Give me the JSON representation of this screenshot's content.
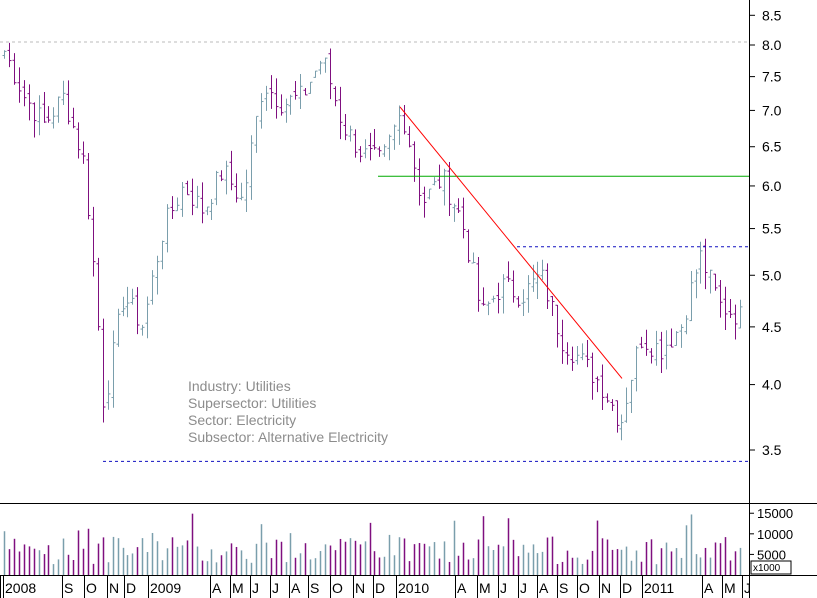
{
  "chart_data": {
    "type": "ohlc",
    "y_scale": "log",
    "ylim": [
      3.2,
      8.6
    ],
    "y_ticks": [
      3.5,
      4.0,
      4.5,
      5.0,
      5.5,
      6.0,
      6.5,
      7.0,
      7.5,
      8.0,
      8.5
    ],
    "y_tick_labels": [
      "3.5",
      "4.0",
      "4.5",
      "5.0",
      "5.5",
      "6.0",
      "6.5",
      "7.0",
      "7.5",
      "8.0",
      "8.5"
    ],
    "x_labels": [
      "2008",
      "S",
      "O",
      "N",
      "D",
      "2009",
      "A",
      "M",
      "J",
      "J",
      "A",
      "S",
      "O",
      "N",
      "D",
      "2010",
      "A",
      "M",
      "J",
      "J",
      "A",
      "S",
      "O",
      "N",
      "D",
      "2011",
      "A",
      "M",
      "J"
    ],
    "info_lines": [
      "Industry: Utilities",
      "Supersector: Utilities",
      "Sector: Electricity",
      "Subsector: Alternative Electricity"
    ],
    "volume": {
      "unit_label": "x1000",
      "ticks": [
        5000,
        10000,
        15000
      ],
      "tick_labels": [
        "5000",
        "10000",
        "15000"
      ],
      "max": 17000
    },
    "colors": {
      "bar_up": "#7a9eac",
      "bar_down": "#7f0f7f",
      "trendline": "#ff0000",
      "support": "#00aa00",
      "dashed": "#1010c0",
      "gridline": "#bbbbbb"
    },
    "reference_lines": {
      "high_dotted_level": 8.05,
      "low_dotted_level": 3.42,
      "support_level": 6.12,
      "resistance_dashed_level": 5.3,
      "trendline": {
        "start": 7.05,
        "end": 4.05
      }
    },
    "key_levels": [
      7.9,
      7.2,
      6.8,
      7.2,
      6.3,
      3.8,
      4.8,
      4.5,
      5.5,
      6.0,
      5.7,
      6.2,
      5.8,
      7.4,
      7.1,
      7.2,
      7.8,
      6.8,
      6.4,
      6.3,
      7.0,
      5.8,
      6.1,
      5.6,
      4.6,
      4.9,
      4.8,
      5.0,
      4.4,
      4.2,
      4.0,
      3.7,
      4.4,
      4.3,
      4.5,
      5.2,
      4.7,
      4.6
    ]
  }
}
